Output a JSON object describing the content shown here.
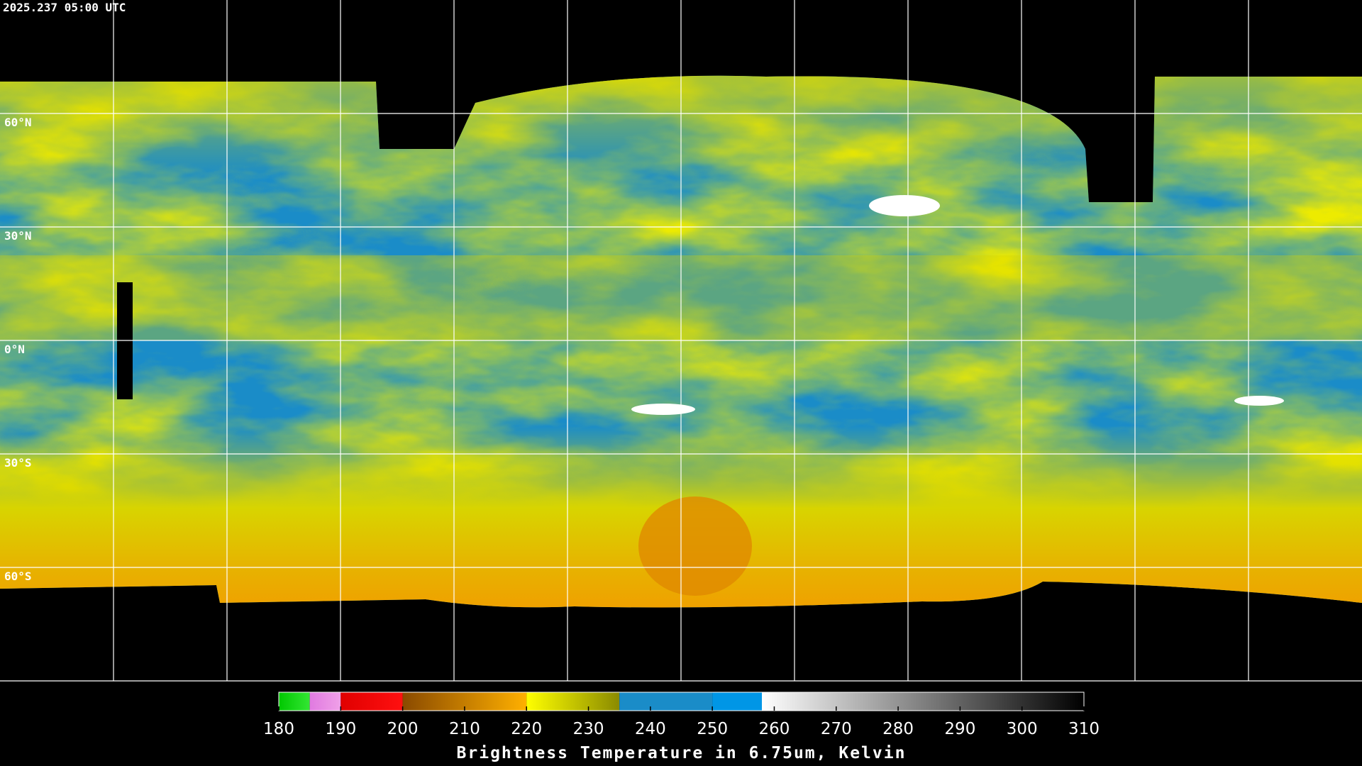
{
  "timestamp": "2025.237 05:00 UTC",
  "map": {
    "latlim": [
      90,
      -90
    ],
    "lat_ticks": [
      {
        "value": 60,
        "label": "60°N"
      },
      {
        "value": 30,
        "label": "30°N"
      },
      {
        "value": 0,
        "label": "0°N"
      },
      {
        "value": -30,
        "label": "30°S"
      },
      {
        "value": -60,
        "label": "60°S"
      }
    ]
  },
  "colorbar": {
    "range": [
      180,
      310
    ],
    "ticks": [
      180,
      190,
      200,
      210,
      220,
      230,
      240,
      250,
      260,
      270,
      280,
      290,
      300,
      310
    ],
    "segments": [
      {
        "from": 180,
        "to": 185,
        "colors": [
          "#00c800",
          "#33e633"
        ]
      },
      {
        "from": 185,
        "to": 190,
        "colors": [
          "#e07ae0",
          "#f0a0e8"
        ]
      },
      {
        "from": 190,
        "to": 200,
        "colors": [
          "#e00000",
          "#ff1010"
        ]
      },
      {
        "from": 200,
        "to": 220,
        "colors": [
          "#8a4a00",
          "#ffb000"
        ]
      },
      {
        "from": 220,
        "to": 235,
        "colors": [
          "#ffff00",
          "#8a8a00"
        ]
      },
      {
        "from": 235,
        "to": 250,
        "colors": [
          "#1a8cc8",
          "#1a8cc8"
        ]
      },
      {
        "from": 250,
        "to": 258,
        "colors": [
          "#0096e6",
          "#0096e6"
        ]
      },
      {
        "from": 258,
        "to": 310,
        "colors": [
          "#ffffff",
          "#000000"
        ]
      }
    ],
    "title": "Brightness Temperature in 6.75um, Kelvin"
  }
}
